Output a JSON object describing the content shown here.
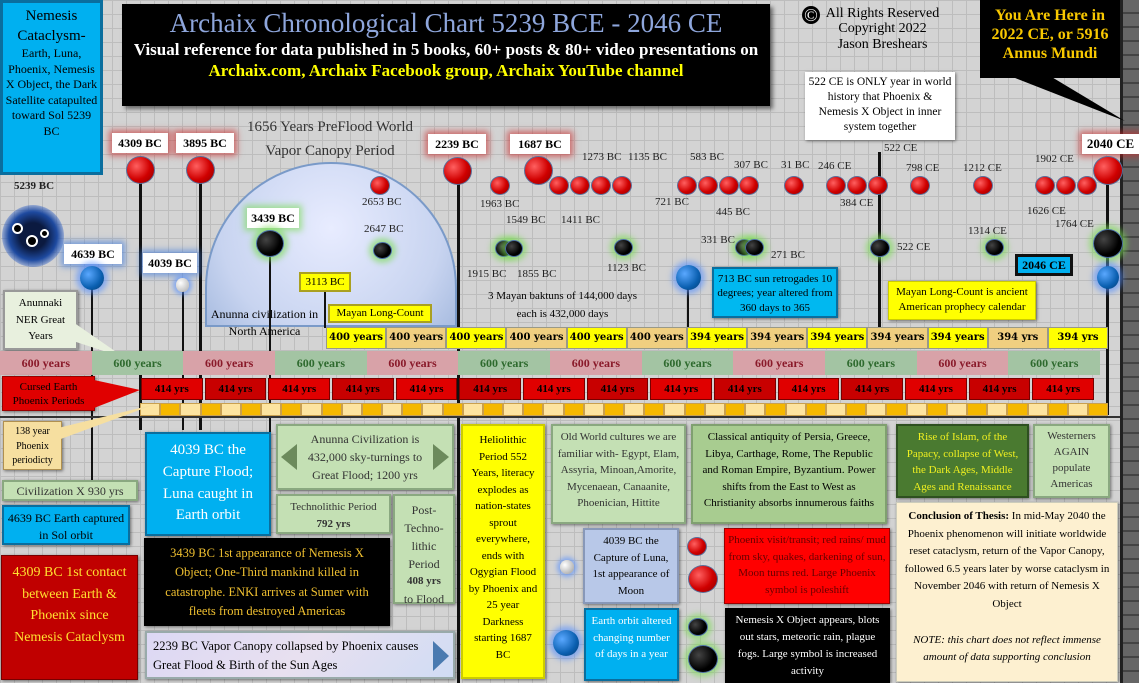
{
  "header": {
    "title": "Archaix Chronological Chart 5239 BCE - 2046 CE",
    "subtitle_1": "Visual reference for data published in 5 books, 60+ posts & 80+ video presentations on",
    "subtitle_links": "Archaix.com, Archaix Facebook group, Archaix YouTube channel"
  },
  "copyright": {
    "symbol": "©",
    "line1": "All Rights Reserved",
    "line2": "Copyright 2022",
    "line3": "Jason Breshears"
  },
  "you_are_here": "You Are Here in 2022 CE, or 5916 Annus Mundi",
  "note_522": "522 CE is ONLY year in world history that Phoenix & Nemesis X Object in inner system together",
  "nemesis_cataclysm": {
    "title": "Nemesis Cataclysm-",
    "body": "Earth, Luna, Phoenix, Nemesis X Object, the Dark Satellite catapulted toward Sol 5239 BC"
  },
  "pre_flood": {
    "line1": "1656 Years PreFlood World",
    "line2": "Vapor Canopy Period"
  },
  "major_markers": [
    "4309 BC",
    "3895 BC",
    "2239 BC",
    "1687 BC",
    "2040 CE"
  ],
  "phoenix_labels": [
    "2653 BC",
    "1963 BC",
    "1549  BC",
    "1411 BC",
    "1273 BC",
    "1135 BC",
    "721 BC",
    "583 BC",
    "445 BC",
    "307 BC",
    "31 BC",
    "246 CE",
    "384 CE",
    "522 CE",
    "798 CE",
    "1212 CE",
    "1626 CE",
    "1764 CE",
    "1902 CE"
  ],
  "nemesis_labels": [
    "3439 BC",
    "2647 BC",
    "1915 BC",
    "1855 BC",
    "1123 BC",
    "331 BC",
    "271 BC",
    "522 CE",
    "1314 CE"
  ],
  "earth_labels": [
    "5239 BC",
    "4639 BC",
    "4039 BC",
    "3113 BC",
    "2046 CE"
  ],
  "mayan": {
    "long_count": "Mayan Long-Count",
    "baktuns_1": "3 Mayan baktuns of 144,000 days",
    "baktuns_2": "each is 432,000 days",
    "ancient": "Mayan Long-Count is ancient American prophecy calendar"
  },
  "retrograde_713": "713 BC sun retrogades 10 degrees; year altered from 360 days to 365",
  "anunna_na": "Anunna civilization in North America",
  "anunnaki_ner": "Anunnaki NER Great Years",
  "cursed_earth": "Cursed Earth Phoenix Periods",
  "periodicity_138": "138 year Phoenix periodicty",
  "mayan_row": [
    "400 years",
    "400 years",
    "400 years",
    "400 years",
    "400 years",
    "400 years",
    "394 years",
    "394 years",
    "394 years",
    "394 years",
    "394 years",
    "394 yrs",
    "394  yrs"
  ],
  "ner_row": [
    "600 years",
    "600 years",
    "600 years",
    "600 years",
    "600 years",
    "600 years",
    "600 years",
    "600 years",
    "600 years",
    "600 years",
    "600 years",
    "600 years"
  ],
  "phoenix_row": [
    "414 yrs",
    "414 yrs",
    "414 yrs",
    "414 yrs",
    "414 yrs",
    "414 yrs",
    "414 yrs",
    "414 yrs",
    "414 yrs",
    "414 yrs",
    "414 yrs",
    "414 yrs",
    "414 yrs",
    "414 yrs",
    "414 yrs"
  ],
  "colors": {
    "pink": "#d8a2a8",
    "green": "#a3c4a3",
    "phoenix_red": "#e00000",
    "mayan_yellow": "#ffff00",
    "mayan_tan": "#f0cf80",
    "cyan": "#00b0f0"
  },
  "bottom": {
    "civ_x": "Civilization X 930 yrs",
    "earth_4639": "4639 BC Earth captured in Sol orbit",
    "contact_4309": "4309 BC 1st contact between Earth & Phoenix since Nemesis Cataclysm",
    "capture_flood": "4039 BC the Capture Flood; Luna caught in Earth orbit",
    "anunna_civ": "Anunna Civilization is 432,000 sky-turnings to Great Flood; 1200 yrs",
    "technolithic": "Technolithic Period",
    "technolithic_yrs": "792 yrs",
    "post_techno": "Post-Techno-lithic Period",
    "post_techno_yrs": "408 yrs",
    "post_techno_end": "to Flood",
    "nemesis_3439": "3439 BC 1st appearance of Nemesis X Object; One-Third mankind killed in catastrophe. ENKI arrives at Sumer with fleets from destroyed Americas",
    "canopy_2239": "2239 BC Vapor Canopy collapsed by Phoenix causes Great Flood & Birth of the Sun Ages",
    "heliolithic": "Heliolithic Period 552 Years, literacy explodes as nation-states sprout everywhere, ends with Ogygian Flood by Phoenix and 25 year Darkness starting 1687 BC",
    "old_world": "Old World cultures we are familiar with- Egypt, Elam, Assyria, Minoan,Amorite, Mycenaean, Canaanite, Phoenician, Hittite",
    "classical": "Classical antiquity of Persia, Greece, Libya,  Carthage, Rome,  The Republic and Roman Empire, Byzantium.  Power shifts from the East to West as Christianity absorbs innumerous faiths",
    "islam": "Rise of Islam, of the Papacy, collapse of West, the Dark Ages, Middle Ages and Renaissance",
    "westerners": "Westerners AGAIN populate Americas",
    "legend_luna": "4039 BC the Capture of Luna, 1st appearance of Moon",
    "legend_orbit": "Earth orbit altered changing number of days in a year",
    "legend_phoenix": "Phoenix visit/transit; red rains/ mud from sky, quakes, darkening of sun,  Moon turns red.  Large Phoenix symbol is poleshift",
    "legend_nemesis": "Nemesis X Object appears, blots out stars, meteoric rain, plague fogs.  Large symbol is increased activity",
    "conclusion_label": "Conclusion of Thesis:",
    "conclusion": "In mid-May 2040 the Phoenix phenomenon will initiate worldwide reset cataclysm, return of the Vapor Canopy, followed 6.5  years later by worse cataclysm in November 2046 with return of Nemesis X Object",
    "note": "NOTE: this chart does not reflect immense amount of data supporting conclusion"
  }
}
